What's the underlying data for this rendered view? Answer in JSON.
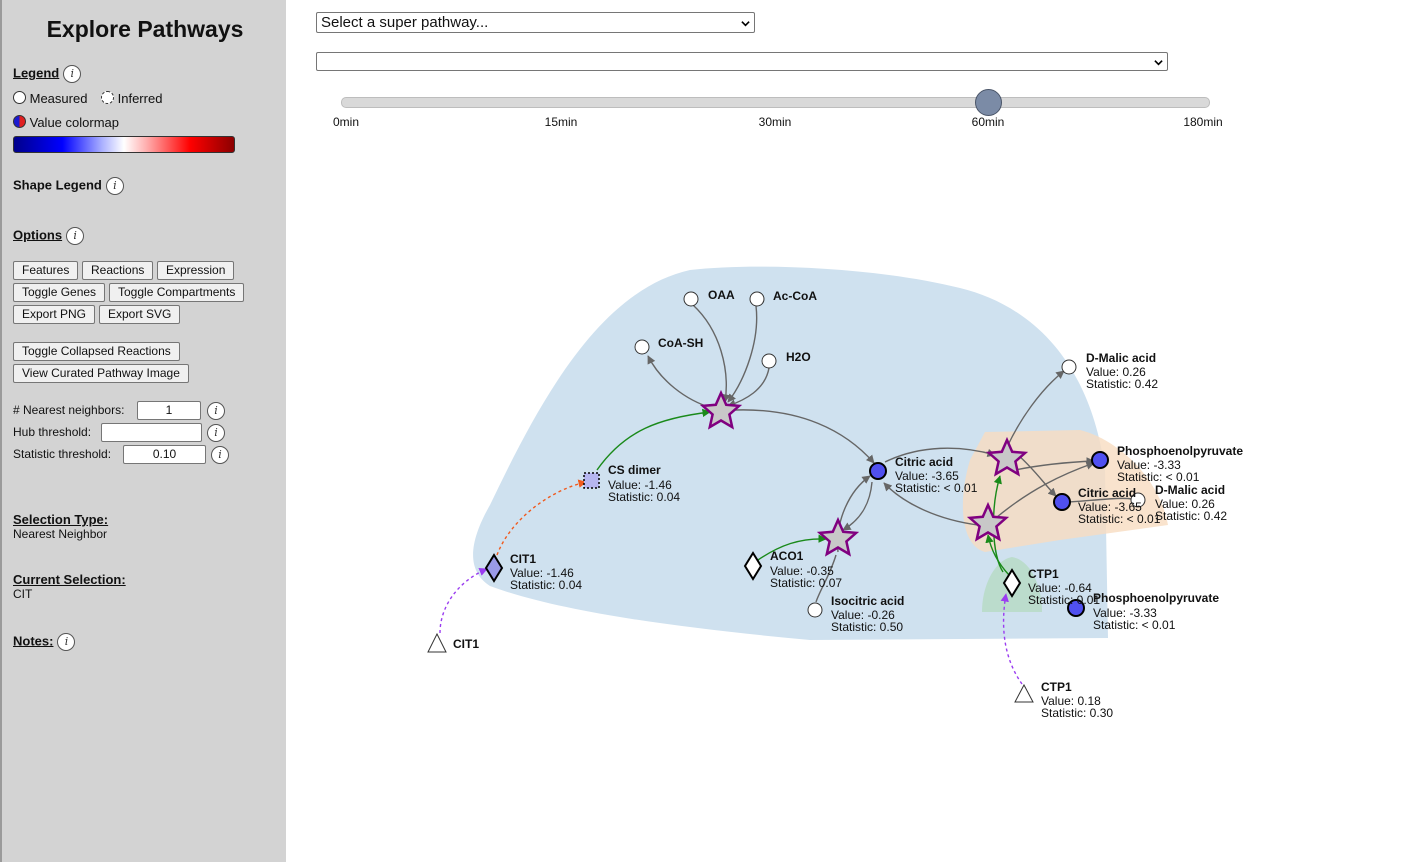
{
  "sidebar": {
    "title": "Explore Pathways",
    "legend": {
      "heading": "Legend",
      "measured": "Measured",
      "inferred": "Inferred",
      "colormap": "Value colormap"
    },
    "shape_legend": "Shape Legend",
    "options": {
      "heading": "Options",
      "buttons": {
        "features": "Features",
        "reactions": "Reactions",
        "expression": "Expression",
        "toggle_genes": "Toggle Genes",
        "toggle_compartments": "Toggle Compartments",
        "export_png": "Export PNG",
        "export_svg": "Export SVG",
        "toggle_collapsed": "Toggle Collapsed Reactions",
        "view_curated": "View Curated Pathway Image"
      }
    },
    "params": {
      "nearest_label": "# Nearest neighbors:",
      "nearest_value": "1",
      "hub_label": "Hub threshold:",
      "hub_value": "",
      "stat_label": "Statistic threshold:",
      "stat_value": "0.10"
    },
    "selection_type": {
      "heading": "Selection Type:",
      "value": "Nearest Neighbor"
    },
    "current_selection": {
      "heading": "Current Selection:",
      "value": "CIT"
    },
    "notes": "Notes:"
  },
  "top": {
    "super_pathway": "Select a super pathway...",
    "pathway": "",
    "timepoints": [
      "0min",
      "15min",
      "30min",
      "60min",
      "180min"
    ],
    "selected_timepoint": "60min"
  },
  "colors": {
    "measured_high": "#5050f0",
    "reaction_star": "#800080",
    "compartment_blue": "#cfe1ef",
    "compartment_orange": "#f8dcc0",
    "compartment_green": "#b8dcc8",
    "edge_activation": "#1a8a1a",
    "edge_gene": "#9a3cf0",
    "edge_complex": "#f05a1e"
  },
  "graph": {
    "labels": {
      "oaa": "OAA",
      "acoa": "Ac-CoA",
      "coash": "CoA-SH",
      "h2o": "H2O",
      "csdimer": "CS dimer",
      "csdimer_v": "Value: -1.46",
      "csdimer_s": "Statistic: 0.04",
      "cit1p": "CIT1",
      "cit1p_v": "Value: -1.46",
      "cit1p_s": "Statistic: 0.04",
      "cit1g": "CIT1",
      "citric": "Citric acid",
      "citric_v": "Value: -3.65",
      "citric_s": "Statistic: < 0.01",
      "aco1": "ACO1",
      "aco1_v": "Value: -0.35",
      "aco1_s": "Statistic: 0.07",
      "isocit": "Isocitric acid",
      "isocit_v": "Value: -0.26",
      "isocit_s": "Statistic: 0.50",
      "dmal1": "D-Malic acid",
      "dmal1_v": "Value: 0.26",
      "dmal1_s": "Statistic: 0.42",
      "pep1": "Phosphoenolpyruvate",
      "pep1_v": "Value: -3.33",
      "pep1_s": "Statistic: < 0.01",
      "citric2": "Citric acid",
      "citric2_v": "Value: -3.65",
      "citric2_s": "Statistic: < 0.01",
      "dmal2": "D-Malic acid",
      "dmal2_v": "Value: 0.26",
      "dmal2_s": "Statistic: 0.42",
      "ctp1p": "CTP1",
      "ctp1p_v": "Value: -0.64",
      "ctp1p_s": "Statistic: 0.01",
      "pep2": "Phosphoenolpyruvate",
      "pep2_v": "Value: -3.33",
      "pep2_s": "Statistic: < 0.01",
      "ctp1g": "CTP1",
      "ctp1g_v": "Value: 0.18",
      "ctp1g_s": "Statistic: 0.30"
    }
  }
}
